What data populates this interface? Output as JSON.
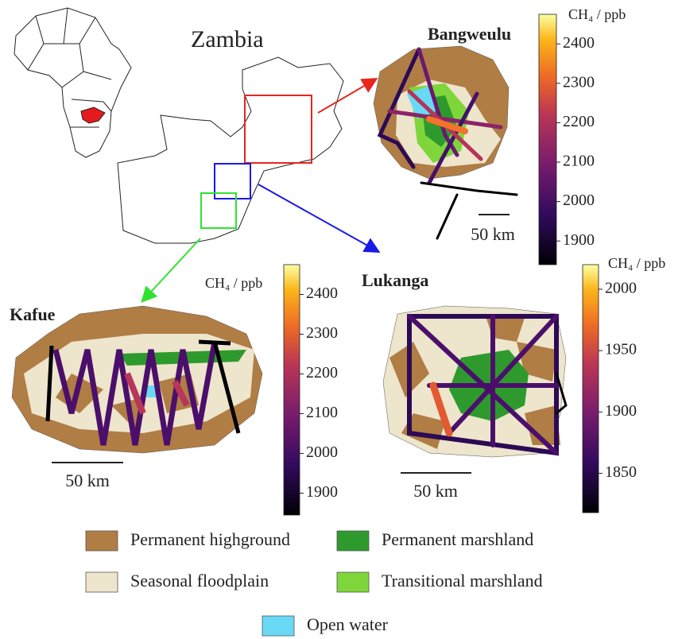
{
  "title": "Zambia",
  "panels": [
    {
      "label": "Bangweulu",
      "scale": "50 km",
      "colorbar": {
        "label": "CH₄ / ppb",
        "lim": [
          1840,
          2475
        ],
        "ticks": [
          1900,
          2000,
          2100,
          2200,
          2300,
          2400
        ]
      }
    },
    {
      "label": "Kafue",
      "scale": "50 km",
      "colorbar": {
        "label": "CH₄ / ppb",
        "lim": [
          1845,
          2475
        ],
        "ticks": [
          1900,
          2000,
          2100,
          2200,
          2300,
          2400
        ]
      }
    },
    {
      "label": "Lukanga",
      "scale": "50 km",
      "colorbar": {
        "label": "CH₄ / ppb",
        "lim": [
          1818,
          2020
        ],
        "ticks": [
          1850,
          1900,
          1950,
          2000
        ]
      }
    }
  ],
  "legend": [
    {
      "label": "Permanent highground",
      "color": "#b07d45"
    },
    {
      "label": "Permanent marshland",
      "color": "#2e9a2e"
    },
    {
      "label": "Seasonal floodplain",
      "color": "#ede5cc"
    },
    {
      "label": "Transitional marshland",
      "color": "#7ed63a"
    },
    {
      "label": "Open water",
      "color": "#6ad9f5"
    }
  ]
}
